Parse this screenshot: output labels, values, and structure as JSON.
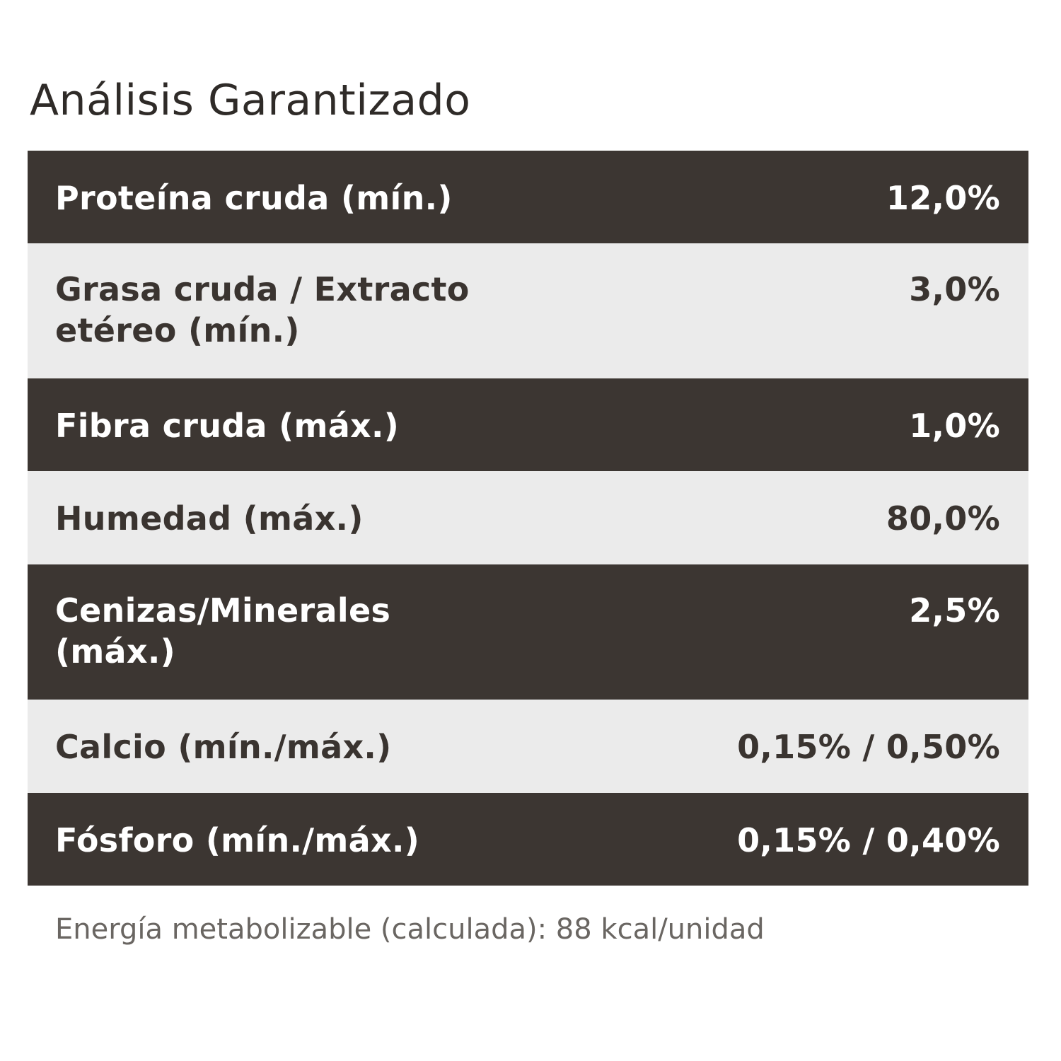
{
  "title": "Análisis Garantizado",
  "rows": [
    {
      "label": "Proteína cruda (mín.)",
      "value": "12,0%"
    },
    {
      "label": "Grasa cruda / Extracto etéreo (mín.)",
      "value": "3,0%"
    },
    {
      "label": "Fibra cruda (máx.)",
      "value": "1,0%"
    },
    {
      "label": "Humedad (máx.)",
      "value": "80,0%"
    },
    {
      "label": "Cenizas/Minerales (máx.)",
      "value": "2,5%"
    },
    {
      "label": "Calcio (mín./máx.)",
      "value": "0,15% / 0,50%"
    },
    {
      "label": "Fósforo (mín./máx.)",
      "value": "0,15% / 0,40%"
    }
  ],
  "footnote": "Energía metabolizable (calculada): 88 kcal/unidad",
  "colors": {
    "dark_row": "#3c3632",
    "light_row": "#ebebeb",
    "dark_text": "#3a3430",
    "light_text": "#ffffff",
    "footnote_text": "#6a6662"
  }
}
